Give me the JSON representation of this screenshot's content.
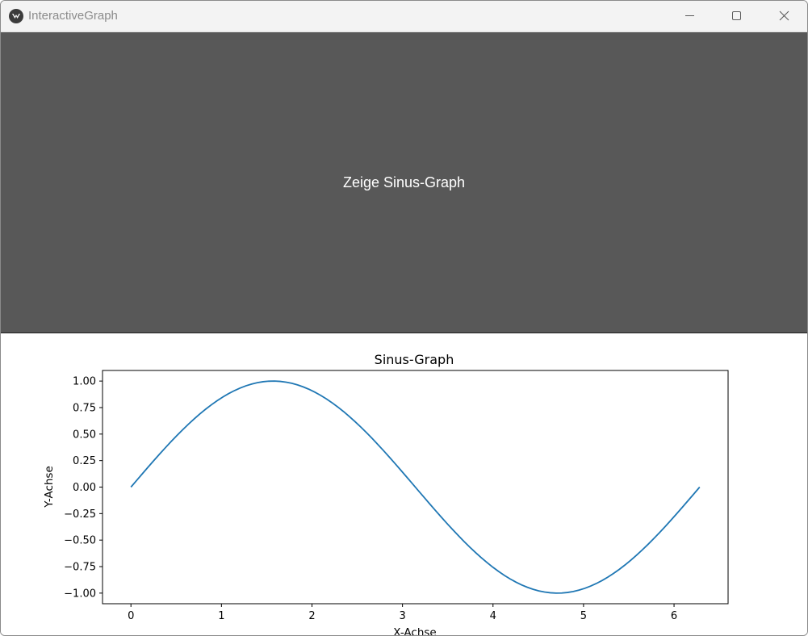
{
  "window": {
    "title": "InteractiveGraph",
    "icon": "kivy-app-icon",
    "controls": [
      "minimize-icon",
      "maximize-icon",
      "close-icon"
    ]
  },
  "main_button": {
    "label": "Zeige Sinus-Graph",
    "background_color": "#585858",
    "text_color": "#ffffff"
  },
  "chart_data": {
    "type": "line",
    "title": "Sinus-Graph",
    "xlabel": "X-Achse",
    "ylabel": "Y-Achse",
    "xlim": [
      -0.314,
      6.597
    ],
    "ylim": [
      -1.1,
      1.1
    ],
    "xticks": [
      0,
      1,
      2,
      3,
      4,
      5,
      6
    ],
    "xtick_labels": [
      "0",
      "1",
      "2",
      "3",
      "4",
      "5",
      "6"
    ],
    "yticks": [
      1.0,
      0.75,
      0.5,
      0.25,
      0.0,
      -0.25,
      -0.5,
      -0.75,
      -1.0
    ],
    "ytick_labels": [
      "1.00",
      "0.75",
      "0.50",
      "0.25",
      "0.00",
      "−0.25",
      "−0.50",
      "−0.75",
      "−1.00"
    ],
    "grid": false,
    "series": [
      {
        "color": "#1f77b4",
        "function": "sin(x)",
        "x_range": [
          0,
          6.283
        ],
        "points": 100
      }
    ]
  }
}
